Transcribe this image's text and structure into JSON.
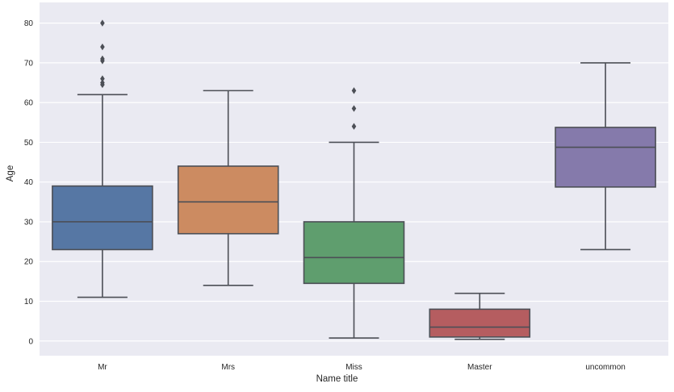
{
  "chart_data": {
    "type": "boxplot",
    "title": "",
    "xlabel": "Name title",
    "ylabel": "Age",
    "categories": [
      "Mr",
      "Mrs",
      "Miss",
      "Master",
      "uncommon"
    ],
    "yticks": [
      0,
      10,
      20,
      30,
      40,
      50,
      60,
      70,
      80
    ],
    "ylim": [
      -3.7,
      85.2
    ],
    "grid": true,
    "legend": false,
    "boxes": [
      {
        "category": "Mr",
        "color": "#5677a4",
        "whisker_low": 11,
        "q1": 23,
        "median": 30,
        "q3": 39,
        "whisker_high": 62,
        "outliers": [
          64.5,
          65,
          66,
          70.5,
          71,
          74,
          80
        ]
      },
      {
        "category": "Mrs",
        "color": "#cc8b61",
        "whisker_low": 14,
        "q1": 27,
        "median": 35,
        "q3": 44,
        "whisker_high": 63,
        "outliers": []
      },
      {
        "category": "Miss",
        "color": "#5f9e6e",
        "whisker_low": 0.75,
        "q1": 14.5,
        "median": 21,
        "q3": 30,
        "whisker_high": 50,
        "outliers": [
          54,
          58.5,
          63
        ]
      },
      {
        "category": "Master",
        "color": "#b55d60",
        "whisker_low": 0.42,
        "q1": 1,
        "median": 3.5,
        "q3": 8,
        "whisker_high": 12,
        "outliers": []
      },
      {
        "category": "uncommon",
        "color": "#857aab",
        "whisker_low": 23,
        "q1": 38.75,
        "median": 48.75,
        "q3": 53.75,
        "whisker_high": 70,
        "outliers": []
      }
    ],
    "styles": {
      "figure_bg": "#ffffff",
      "axes_bg": "#eaeaf2",
      "grid_color": "#ffffff",
      "line_color": "#4c4f56",
      "text_color": "#262626"
    }
  }
}
